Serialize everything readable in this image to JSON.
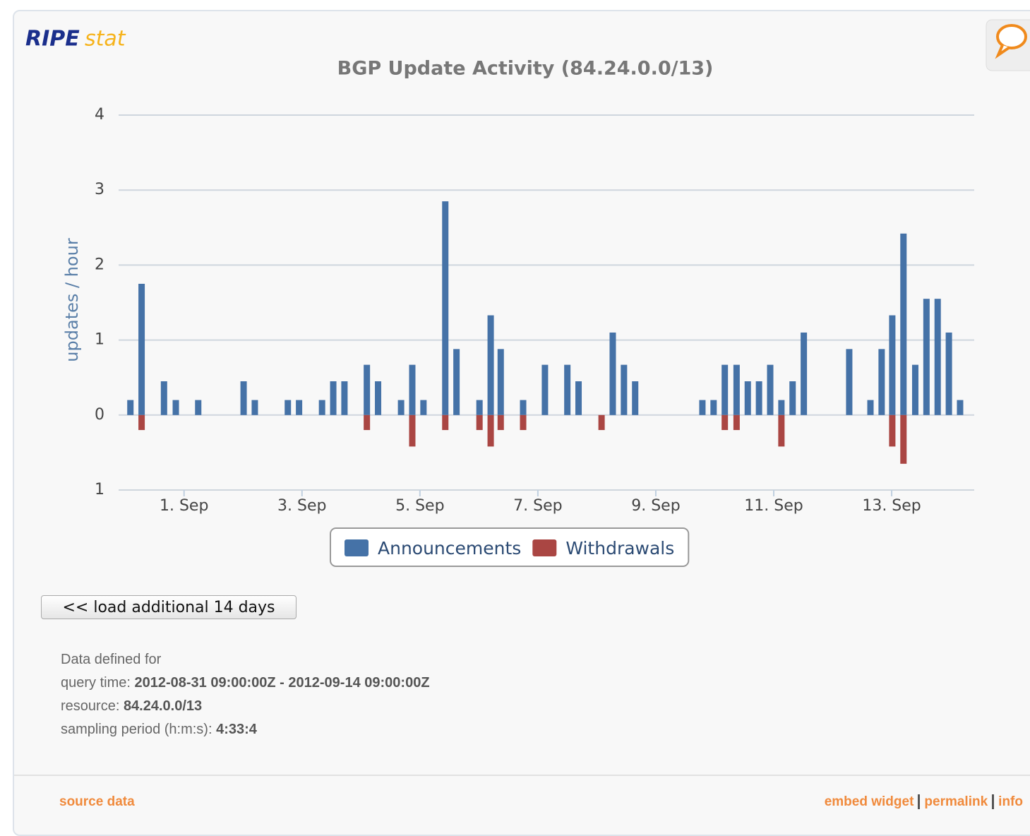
{
  "header": {
    "logo_ripe": "RIPE",
    "logo_stat": "stat"
  },
  "chart_data": {
    "type": "bar",
    "title": "BGP Update Activity (84.24.0.0/13)",
    "y_label": "updates / hour",
    "xlim": [
      -0.11,
      14.4
    ],
    "xticks": [
      {
        "value": 1,
        "label": "1. Sep"
      },
      {
        "value": 3,
        "label": "3. Sep"
      },
      {
        "value": 5,
        "label": "5. Sep"
      },
      {
        "value": 7,
        "label": "7. Sep"
      },
      {
        "value": 9,
        "label": "9. Sep"
      },
      {
        "value": 11,
        "label": "11. Sep"
      },
      {
        "value": 13,
        "label": "13. Sep"
      }
    ],
    "ylim": [
      -1,
      4
    ],
    "yticks": [
      {
        "value": -1,
        "label": "1"
      },
      0,
      1,
      2,
      3,
      4
    ],
    "grid": true,
    "series": [
      {
        "name": "Announcements",
        "color": "#4572a7",
        "x": [
          0.09,
          0.28,
          0.66,
          0.86,
          1.24,
          2.01,
          2.2,
          2.76,
          2.95,
          3.34,
          3.53,
          3.72,
          4.1,
          4.29,
          4.68,
          4.87,
          5.06,
          5.43,
          5.62,
          6.01,
          6.2,
          6.37,
          6.75,
          7.12,
          7.5,
          7.69,
          8.27,
          8.46,
          8.65,
          9.79,
          9.98,
          10.17,
          10.37,
          10.56,
          10.75,
          10.94,
          11.13,
          11.32,
          11.51,
          12.28,
          12.64,
          12.83,
          13.01,
          13.2,
          13.4,
          13.59,
          13.78,
          13.97,
          14.16
        ],
        "values": [
          0.2,
          1.75,
          0.45,
          0.2,
          0.2,
          0.45,
          0.2,
          0.2,
          0.2,
          0.2,
          0.45,
          0.45,
          0.67,
          0.45,
          0.2,
          0.67,
          0.2,
          2.85,
          0.88,
          0.2,
          1.33,
          0.88,
          0.2,
          0.67,
          0.67,
          0.45,
          1.1,
          0.67,
          0.45,
          0.2,
          0.2,
          0.67,
          0.67,
          0.45,
          0.45,
          0.67,
          0.2,
          0.45,
          1.1,
          0.88,
          0.2,
          0.88,
          1.33,
          2.42,
          0.67,
          1.55,
          1.55,
          1.1,
          0.2
        ]
      },
      {
        "name": "Withdrawals",
        "color": "#aa4643",
        "x": [
          0.28,
          4.1,
          4.87,
          5.43,
          6.01,
          6.2,
          6.37,
          6.75,
          8.08,
          10.17,
          10.37,
          11.13,
          13.01,
          13.2
        ],
        "values": [
          -0.2,
          -0.2,
          -0.42,
          -0.2,
          -0.2,
          -0.42,
          -0.2,
          -0.2,
          -0.2,
          -0.2,
          -0.2,
          -0.42,
          -0.42,
          -0.65
        ]
      }
    ]
  },
  "button": "<< load additional 14 days",
  "info": {
    "heading": "Data defined for",
    "rows": [
      [
        "query time: ",
        "2012-08-31 09:00:00Z - 2012-09-14 09:00:00Z"
      ],
      [
        "resource: ",
        "84.24.0.0/13"
      ],
      [
        "sampling period (h:m:s): ",
        "4:33:4"
      ]
    ]
  },
  "footer": {
    "left": "source data",
    "right": [
      "embed widget",
      "permalink",
      "info"
    ]
  }
}
